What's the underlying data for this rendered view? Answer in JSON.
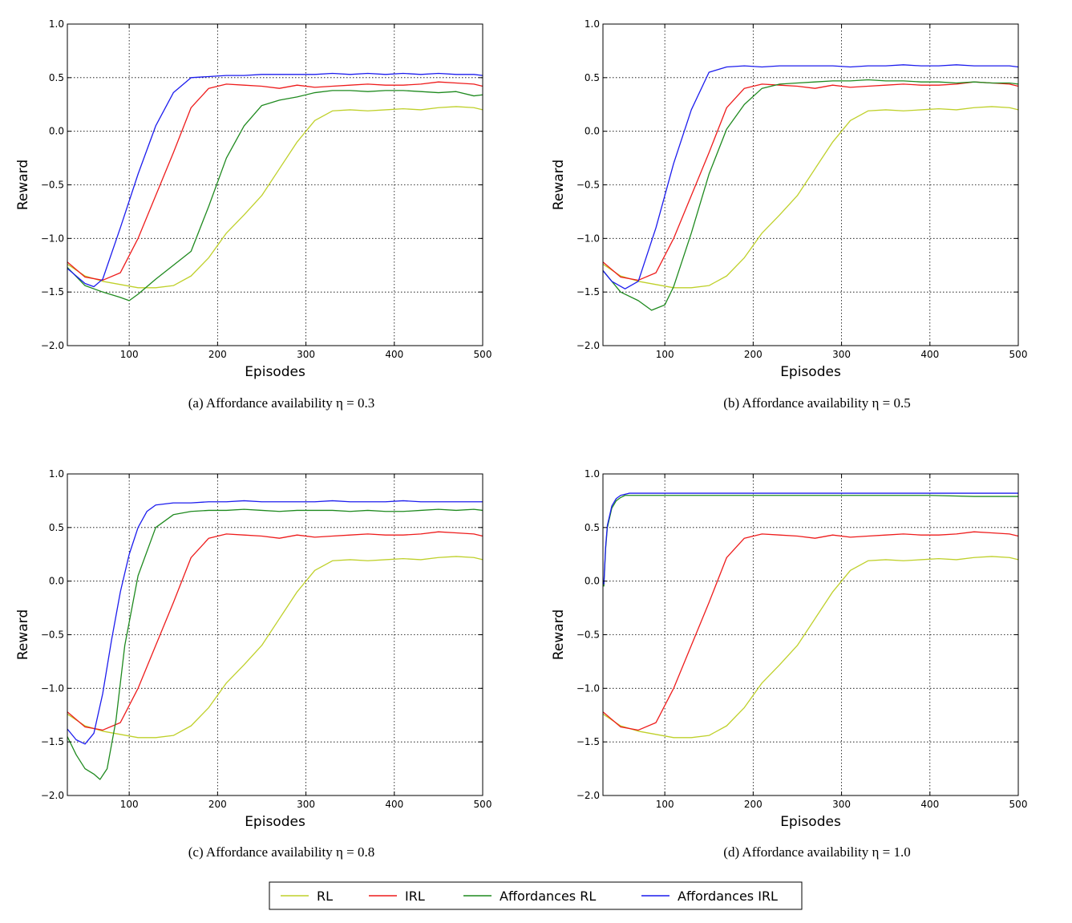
{
  "legend": {
    "entries": [
      {
        "label": "RL",
        "color": "#bfd02a"
      },
      {
        "label": "IRL",
        "color": "#ee1c1c"
      },
      {
        "label": "Affordances RL",
        "color": "#1f8a1f"
      },
      {
        "label": "Affordances IRL",
        "color": "#1c1cee"
      }
    ]
  },
  "chart_data": [
    {
      "type": "line",
      "caption": "(a) Affordance availability η = 0.3",
      "xlabel": "Episodes",
      "ylabel": "Reward",
      "xlim": [
        30,
        500
      ],
      "ylim": [
        -2.0,
        1.0
      ],
      "xticks": [
        100,
        200,
        300,
        400,
        500
      ],
      "yticks": [
        -2.0,
        -1.5,
        -1.0,
        -0.5,
        0.0,
        0.5,
        1.0
      ],
      "xtick_labels": [
        "100",
        "200",
        "300",
        "400",
        "500"
      ],
      "ytick_labels": [
        "−2.0",
        "−1.5",
        "−1.0",
        "−0.5",
        "0.0",
        "0.5",
        "1.0"
      ],
      "grid": true,
      "series": [
        {
          "name": "RL",
          "color": "#bfd02a",
          "x": [
            30,
            50,
            70,
            90,
            110,
            130,
            150,
            170,
            190,
            210,
            230,
            250,
            270,
            290,
            310,
            330,
            350,
            370,
            390,
            410,
            430,
            450,
            470,
            490,
            500
          ],
          "y": [
            -1.24,
            -1.35,
            -1.4,
            -1.43,
            -1.46,
            -1.46,
            -1.44,
            -1.35,
            -1.18,
            -0.95,
            -0.78,
            -0.6,
            -0.35,
            -0.1,
            0.1,
            0.19,
            0.2,
            0.19,
            0.2,
            0.21,
            0.2,
            0.22,
            0.23,
            0.22,
            0.2
          ]
        },
        {
          "name": "IRL",
          "color": "#ee1c1c",
          "x": [
            30,
            50,
            70,
            90,
            110,
            130,
            150,
            170,
            190,
            210,
            230,
            250,
            270,
            290,
            310,
            330,
            350,
            370,
            390,
            410,
            430,
            450,
            470,
            490,
            500
          ],
          "y": [
            -1.22,
            -1.36,
            -1.39,
            -1.32,
            -1.0,
            -0.6,
            -0.2,
            0.22,
            0.4,
            0.44,
            0.43,
            0.42,
            0.4,
            0.43,
            0.41,
            0.42,
            0.43,
            0.44,
            0.43,
            0.43,
            0.44,
            0.46,
            0.45,
            0.44,
            0.42
          ]
        },
        {
          "name": "Affordances RL",
          "color": "#1f8a1f",
          "x": [
            30,
            50,
            70,
            90,
            100,
            110,
            130,
            150,
            170,
            190,
            210,
            230,
            250,
            270,
            290,
            310,
            330,
            350,
            370,
            390,
            410,
            430,
            450,
            470,
            490,
            500
          ],
          "y": [
            -1.27,
            -1.44,
            -1.5,
            -1.55,
            -1.58,
            -1.52,
            -1.38,
            -1.25,
            -1.12,
            -0.7,
            -0.25,
            0.05,
            0.24,
            0.29,
            0.32,
            0.36,
            0.38,
            0.38,
            0.37,
            0.38,
            0.38,
            0.37,
            0.36,
            0.37,
            0.33,
            0.34
          ]
        },
        {
          "name": "Affordances IRL",
          "color": "#1c1cee",
          "x": [
            30,
            50,
            60,
            70,
            90,
            110,
            130,
            150,
            170,
            190,
            210,
            230,
            250,
            270,
            290,
            310,
            330,
            350,
            370,
            390,
            410,
            430,
            450,
            470,
            490,
            500
          ],
          "y": [
            -1.28,
            -1.42,
            -1.45,
            -1.38,
            -0.9,
            -0.4,
            0.05,
            0.36,
            0.5,
            0.51,
            0.52,
            0.52,
            0.53,
            0.53,
            0.53,
            0.53,
            0.54,
            0.53,
            0.54,
            0.53,
            0.54,
            0.53,
            0.54,
            0.53,
            0.53,
            0.52
          ]
        }
      ]
    },
    {
      "type": "line",
      "caption": "(b) Affordance availability η = 0.5",
      "xlabel": "Episodes",
      "ylabel": "Reward",
      "xlim": [
        30,
        500
      ],
      "ylim": [
        -2.0,
        1.0
      ],
      "xticks": [
        100,
        200,
        300,
        400,
        500
      ],
      "yticks": [
        -2.0,
        -1.5,
        -1.0,
        -0.5,
        0.0,
        0.5,
        1.0
      ],
      "xtick_labels": [
        "100",
        "200",
        "300",
        "400",
        "500"
      ],
      "ytick_labels": [
        "−2.0",
        "−1.5",
        "−1.0",
        "−0.5",
        "0.0",
        "0.5",
        "1.0"
      ],
      "grid": true,
      "series": [
        {
          "name": "RL",
          "color": "#bfd02a",
          "x": [
            30,
            50,
            70,
            90,
            110,
            130,
            150,
            170,
            190,
            210,
            230,
            250,
            270,
            290,
            310,
            330,
            350,
            370,
            390,
            410,
            430,
            450,
            470,
            490,
            500
          ],
          "y": [
            -1.24,
            -1.35,
            -1.4,
            -1.43,
            -1.46,
            -1.46,
            -1.44,
            -1.35,
            -1.18,
            -0.95,
            -0.78,
            -0.6,
            -0.35,
            -0.1,
            0.1,
            0.19,
            0.2,
            0.19,
            0.2,
            0.21,
            0.2,
            0.22,
            0.23,
            0.22,
            0.2
          ]
        },
        {
          "name": "IRL",
          "color": "#ee1c1c",
          "x": [
            30,
            50,
            70,
            90,
            110,
            130,
            150,
            170,
            190,
            210,
            230,
            250,
            270,
            290,
            310,
            330,
            350,
            370,
            390,
            410,
            430,
            450,
            470,
            490,
            500
          ],
          "y": [
            -1.22,
            -1.36,
            -1.39,
            -1.32,
            -1.0,
            -0.6,
            -0.2,
            0.22,
            0.4,
            0.44,
            0.43,
            0.42,
            0.4,
            0.43,
            0.41,
            0.42,
            0.43,
            0.44,
            0.43,
            0.43,
            0.44,
            0.46,
            0.45,
            0.44,
            0.42
          ]
        },
        {
          "name": "Affordances RL",
          "color": "#1f8a1f",
          "x": [
            30,
            50,
            70,
            85,
            100,
            110,
            130,
            150,
            170,
            190,
            210,
            230,
            250,
            270,
            290,
            310,
            330,
            350,
            370,
            390,
            410,
            430,
            450,
            470,
            490,
            500
          ],
          "y": [
            -1.3,
            -1.5,
            -1.58,
            -1.67,
            -1.62,
            -1.45,
            -0.95,
            -0.4,
            0.02,
            0.25,
            0.4,
            0.44,
            0.45,
            0.46,
            0.47,
            0.47,
            0.48,
            0.47,
            0.47,
            0.46,
            0.46,
            0.45,
            0.46,
            0.45,
            0.45,
            0.44
          ]
        },
        {
          "name": "Affordances IRL",
          "color": "#1c1cee",
          "x": [
            30,
            40,
            55,
            70,
            90,
            110,
            130,
            150,
            170,
            190,
            210,
            230,
            250,
            270,
            290,
            310,
            330,
            350,
            370,
            390,
            410,
            430,
            450,
            470,
            490,
            500
          ],
          "y": [
            -1.3,
            -1.4,
            -1.47,
            -1.4,
            -0.9,
            -0.3,
            0.2,
            0.55,
            0.6,
            0.61,
            0.6,
            0.61,
            0.61,
            0.61,
            0.61,
            0.6,
            0.61,
            0.61,
            0.62,
            0.61,
            0.61,
            0.62,
            0.61,
            0.61,
            0.61,
            0.6
          ]
        }
      ]
    },
    {
      "type": "line",
      "caption": "(c) Affordance availability η = 0.8",
      "xlabel": "Episodes",
      "ylabel": "Reward",
      "xlim": [
        30,
        500
      ],
      "ylim": [
        -2.0,
        1.0
      ],
      "xticks": [
        100,
        200,
        300,
        400,
        500
      ],
      "yticks": [
        -2.0,
        -1.5,
        -1.0,
        -0.5,
        0.0,
        0.5,
        1.0
      ],
      "xtick_labels": [
        "100",
        "200",
        "300",
        "400",
        "500"
      ],
      "ytick_labels": [
        "−2.0",
        "−1.5",
        "−1.0",
        "−0.5",
        "0.0",
        "0.5",
        "1.0"
      ],
      "grid": true,
      "series": [
        {
          "name": "RL",
          "color": "#bfd02a",
          "x": [
            30,
            50,
            70,
            90,
            110,
            130,
            150,
            170,
            190,
            210,
            230,
            250,
            270,
            290,
            310,
            330,
            350,
            370,
            390,
            410,
            430,
            450,
            470,
            490,
            500
          ],
          "y": [
            -1.24,
            -1.35,
            -1.4,
            -1.43,
            -1.46,
            -1.46,
            -1.44,
            -1.35,
            -1.18,
            -0.95,
            -0.78,
            -0.6,
            -0.35,
            -0.1,
            0.1,
            0.19,
            0.2,
            0.19,
            0.2,
            0.21,
            0.2,
            0.22,
            0.23,
            0.22,
            0.2
          ]
        },
        {
          "name": "IRL",
          "color": "#ee1c1c",
          "x": [
            30,
            50,
            70,
            90,
            110,
            130,
            150,
            170,
            190,
            210,
            230,
            250,
            270,
            290,
            310,
            330,
            350,
            370,
            390,
            410,
            430,
            450,
            470,
            490,
            500
          ],
          "y": [
            -1.22,
            -1.36,
            -1.39,
            -1.32,
            -1.0,
            -0.6,
            -0.2,
            0.22,
            0.4,
            0.44,
            0.43,
            0.42,
            0.4,
            0.43,
            0.41,
            0.42,
            0.43,
            0.44,
            0.43,
            0.43,
            0.44,
            0.46,
            0.45,
            0.44,
            0.42
          ]
        },
        {
          "name": "Affordances RL",
          "color": "#1f8a1f",
          "x": [
            30,
            40,
            50,
            60,
            67,
            75,
            85,
            95,
            110,
            130,
            150,
            170,
            190,
            210,
            230,
            250,
            270,
            290,
            310,
            330,
            350,
            370,
            390,
            410,
            430,
            450,
            470,
            490,
            500
          ],
          "y": [
            -1.45,
            -1.62,
            -1.75,
            -1.8,
            -1.85,
            -1.75,
            -1.3,
            -0.6,
            0.05,
            0.5,
            0.62,
            0.65,
            0.66,
            0.66,
            0.67,
            0.66,
            0.65,
            0.66,
            0.66,
            0.66,
            0.65,
            0.66,
            0.65,
            0.65,
            0.66,
            0.67,
            0.66,
            0.67,
            0.66
          ]
        },
        {
          "name": "Affordances IRL",
          "color": "#1c1cee",
          "x": [
            30,
            40,
            50,
            60,
            70,
            80,
            90,
            100,
            110,
            120,
            130,
            150,
            170,
            190,
            210,
            230,
            250,
            270,
            290,
            310,
            330,
            350,
            370,
            390,
            410,
            430,
            450,
            470,
            490,
            500
          ],
          "y": [
            -1.38,
            -1.48,
            -1.52,
            -1.42,
            -1.05,
            -0.55,
            -0.1,
            0.25,
            0.5,
            0.65,
            0.71,
            0.73,
            0.73,
            0.74,
            0.74,
            0.75,
            0.74,
            0.74,
            0.74,
            0.74,
            0.75,
            0.74,
            0.74,
            0.74,
            0.75,
            0.74,
            0.74,
            0.74,
            0.74,
            0.74
          ]
        }
      ]
    },
    {
      "type": "line",
      "caption": "(d) Affordance availability η = 1.0",
      "xlabel": "Episodes",
      "ylabel": "Reward",
      "xlim": [
        30,
        500
      ],
      "ylim": [
        -2.0,
        1.0
      ],
      "xticks": [
        100,
        200,
        300,
        400,
        500
      ],
      "yticks": [
        -2.0,
        -1.5,
        -1.0,
        -0.5,
        0.0,
        0.5,
        1.0
      ],
      "xtick_labels": [
        "100",
        "200",
        "300",
        "400",
        "500"
      ],
      "ytick_labels": [
        "−2.0",
        "−1.5",
        "−1.0",
        "−0.5",
        "0.0",
        "0.5",
        "1.0"
      ],
      "grid": true,
      "series": [
        {
          "name": "RL",
          "color": "#bfd02a",
          "x": [
            30,
            50,
            70,
            90,
            110,
            130,
            150,
            170,
            190,
            210,
            230,
            250,
            270,
            290,
            310,
            330,
            350,
            370,
            390,
            410,
            430,
            450,
            470,
            490,
            500
          ],
          "y": [
            -1.24,
            -1.35,
            -1.4,
            -1.43,
            -1.46,
            -1.46,
            -1.44,
            -1.35,
            -1.18,
            -0.95,
            -0.78,
            -0.6,
            -0.35,
            -0.1,
            0.1,
            0.19,
            0.2,
            0.19,
            0.2,
            0.21,
            0.2,
            0.22,
            0.23,
            0.22,
            0.2
          ]
        },
        {
          "name": "IRL",
          "color": "#ee1c1c",
          "x": [
            30,
            50,
            70,
            90,
            110,
            130,
            150,
            170,
            190,
            210,
            230,
            250,
            270,
            290,
            310,
            330,
            350,
            370,
            390,
            410,
            430,
            450,
            470,
            490,
            500
          ],
          "y": [
            -1.22,
            -1.36,
            -1.39,
            -1.32,
            -1.0,
            -0.6,
            -0.2,
            0.22,
            0.4,
            0.44,
            0.43,
            0.42,
            0.4,
            0.43,
            0.41,
            0.42,
            0.43,
            0.44,
            0.43,
            0.43,
            0.44,
            0.46,
            0.45,
            0.44,
            0.42
          ]
        },
        {
          "name": "Affordances RL",
          "color": "#1f8a1f",
          "x": [
            31,
            33,
            35,
            40,
            45,
            50,
            55,
            60,
            70,
            80,
            100,
            150,
            200,
            250,
            300,
            350,
            400,
            450,
            500
          ],
          "y": [
            -0.05,
            0.3,
            0.5,
            0.68,
            0.75,
            0.78,
            0.8,
            0.8,
            0.8,
            0.8,
            0.8,
            0.8,
            0.8,
            0.8,
            0.8,
            0.8,
            0.8,
            0.79,
            0.79
          ]
        },
        {
          "name": "Affordances IRL",
          "color": "#1c1cee",
          "x": [
            31,
            33,
            35,
            40,
            45,
            50,
            55,
            60,
            70,
            80,
            100,
            150,
            200,
            250,
            300,
            350,
            400,
            450,
            500
          ],
          "y": [
            -0.03,
            0.32,
            0.52,
            0.7,
            0.77,
            0.8,
            0.81,
            0.82,
            0.82,
            0.82,
            0.82,
            0.82,
            0.82,
            0.82,
            0.82,
            0.82,
            0.82,
            0.82,
            0.82
          ]
        }
      ]
    }
  ]
}
